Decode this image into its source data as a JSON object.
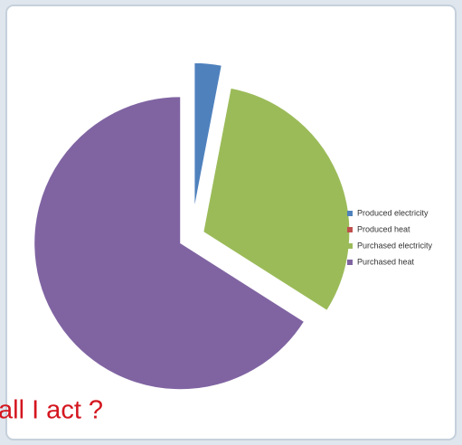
{
  "chart_data": {
    "type": "pie",
    "categories": [
      "Produced electricity",
      "Produced heat",
      "Purchased electricity",
      "Purchased heat"
    ],
    "values": [
      3,
      0,
      31,
      66
    ],
    "colors": [
      "#4f81bd",
      "#c0504d",
      "#9bbb59",
      "#8064a2"
    ],
    "legend": "right",
    "annotation": "all I act ?"
  }
}
